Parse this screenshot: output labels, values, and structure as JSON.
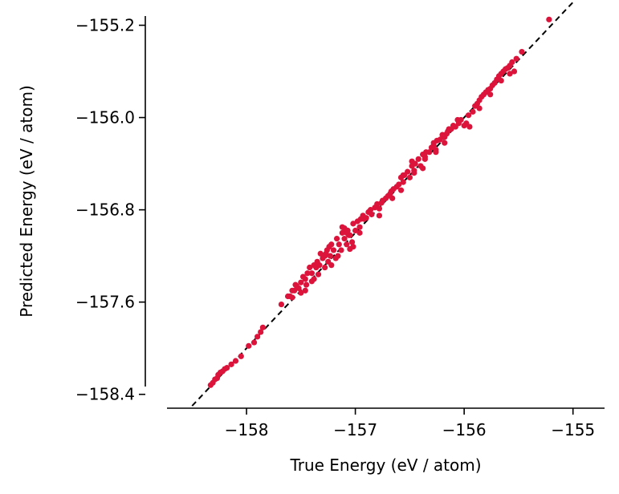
{
  "chart_data": {
    "type": "scatter",
    "title": "",
    "xlabel": "True Energy (eV / atom)",
    "ylabel": "Predicted Energy (eV / atom)",
    "xlim": [
      -158.93,
      -154.71
    ],
    "ylim": [
      -158.52,
      -155.12
    ],
    "xticks": [
      -158,
      -157,
      -156,
      -155
    ],
    "xtick_labels": [
      "−158",
      "−157",
      "−156",
      "−155"
    ],
    "yticks": [
      -158.4,
      -157.6,
      -156.8,
      -156.0,
      -155.2
    ],
    "ytick_labels": [
      "−158.4",
      "−157.6",
      "−156.8",
      "−156.0",
      "−155.2"
    ],
    "grid": false,
    "spines": [
      "left",
      "bottom"
    ],
    "colors": {
      "points": "#dc143c",
      "reference_line": "#000000"
    },
    "reference_line": {
      "style": "dashed",
      "x": [
        -158.5,
        -155.0
      ],
      "y": [
        -158.5,
        -155.0
      ]
    },
    "series": [
      {
        "points": [
          [
            -158.33,
            -158.32
          ],
          [
            -158.31,
            -158.3
          ],
          [
            -158.29,
            -158.27
          ],
          [
            -158.27,
            -158.26
          ],
          [
            -158.26,
            -158.23
          ],
          [
            -158.24,
            -158.21
          ],
          [
            -158.22,
            -158.2
          ],
          [
            -158.2,
            -158.18
          ],
          [
            -158.18,
            -158.17
          ],
          [
            -158.14,
            -158.14
          ],
          [
            -158.1,
            -158.11
          ],
          [
            -158.05,
            -158.07
          ],
          [
            -157.98,
            -157.98
          ],
          [
            -157.93,
            -157.95
          ],
          [
            -157.9,
            -157.9
          ],
          [
            -157.87,
            -157.86
          ],
          [
            -157.85,
            -157.82
          ],
          [
            -157.68,
            -157.62
          ],
          [
            -157.62,
            -157.55
          ],
          [
            -157.6,
            -157.55
          ],
          [
            -157.58,
            -157.5
          ],
          [
            -157.56,
            -157.5
          ],
          [
            -157.55,
            -157.45
          ],
          [
            -157.52,
            -157.48
          ],
          [
            -157.5,
            -157.43
          ],
          [
            -157.48,
            -157.38
          ],
          [
            -157.46,
            -157.4
          ],
          [
            -157.45,
            -157.45
          ],
          [
            -157.42,
            -157.3
          ],
          [
            -157.4,
            -157.35
          ],
          [
            -157.38,
            -157.4
          ],
          [
            -157.36,
            -157.3
          ],
          [
            -157.35,
            -157.25
          ],
          [
            -157.33,
            -157.28
          ],
          [
            -157.3,
            -157.22
          ],
          [
            -157.28,
            -157.3
          ],
          [
            -157.27,
            -157.18
          ],
          [
            -157.25,
            -157.25
          ],
          [
            -157.23,
            -157.2
          ],
          [
            -157.22,
            -157.1
          ],
          [
            -157.2,
            -157.15
          ],
          [
            -157.18,
            -157.22
          ],
          [
            -157.17,
            -157.05
          ],
          [
            -157.15,
            -157.1
          ],
          [
            -157.13,
            -157.15
          ],
          [
            -157.12,
            -157.0
          ],
          [
            -157.1,
            -157.05
          ],
          [
            -157.08,
            -157.1
          ],
          [
            -157.07,
            -156.98
          ],
          [
            -157.05,
            -157.02
          ],
          [
            -157.03,
            -157.08
          ],
          [
            -157.02,
            -156.92
          ],
          [
            -157.0,
            -156.98
          ],
          [
            -156.98,
            -156.9
          ],
          [
            -156.96,
            -156.95
          ],
          [
            -156.95,
            -156.88
          ],
          [
            -156.93,
            -156.85
          ],
          [
            -156.9,
            -156.87
          ],
          [
            -156.88,
            -156.82
          ],
          [
            -156.85,
            -156.84
          ],
          [
            -156.82,
            -156.78
          ],
          [
            -156.8,
            -156.75
          ],
          [
            -156.78,
            -156.79
          ],
          [
            -156.75,
            -156.72
          ],
          [
            -156.72,
            -156.7
          ],
          [
            -156.7,
            -156.68
          ],
          [
            -156.67,
            -156.64
          ],
          [
            -156.65,
            -156.62
          ],
          [
            -156.62,
            -156.6
          ],
          [
            -156.6,
            -156.58
          ],
          [
            -156.58,
            -156.52
          ],
          [
            -156.56,
            -156.56
          ],
          [
            -156.55,
            -156.5
          ],
          [
            -156.52,
            -156.47
          ],
          [
            -156.5,
            -156.52
          ],
          [
            -156.48,
            -156.42
          ],
          [
            -156.46,
            -156.46
          ],
          [
            -156.45,
            -156.4
          ],
          [
            -156.42,
            -156.36
          ],
          [
            -156.4,
            -156.42
          ],
          [
            -156.38,
            -156.32
          ],
          [
            -156.36,
            -156.36
          ],
          [
            -156.35,
            -156.3
          ],
          [
            -156.32,
            -156.3
          ],
          [
            -156.3,
            -156.26
          ],
          [
            -156.28,
            -156.24
          ],
          [
            -156.26,
            -156.28
          ],
          [
            -156.25,
            -156.2
          ],
          [
            -156.22,
            -156.19
          ],
          [
            -156.2,
            -156.15
          ],
          [
            -156.18,
            -156.17
          ],
          [
            -156.15,
            -156.12
          ],
          [
            -156.12,
            -156.1
          ],
          [
            -156.1,
            -156.07
          ],
          [
            -156.08,
            -156.08
          ],
          [
            -156.05,
            -156.05
          ],
          [
            -156.03,
            -156.02
          ],
          [
            -156.0,
            -156.07
          ],
          [
            -155.95,
            -156.08
          ],
          [
            -155.92,
            -155.95
          ],
          [
            -155.9,
            -155.9
          ],
          [
            -155.88,
            -155.88
          ],
          [
            -155.86,
            -155.85
          ],
          [
            -155.84,
            -155.82
          ],
          [
            -155.82,
            -155.8
          ],
          [
            -155.8,
            -155.78
          ],
          [
            -155.78,
            -155.76
          ],
          [
            -155.76,
            -155.75
          ],
          [
            -155.74,
            -155.72
          ],
          [
            -155.72,
            -155.7
          ],
          [
            -155.7,
            -155.67
          ],
          [
            -155.68,
            -155.64
          ],
          [
            -155.66,
            -155.62
          ],
          [
            -155.64,
            -155.6
          ],
          [
            -155.62,
            -155.58
          ],
          [
            -155.6,
            -155.57
          ],
          [
            -155.58,
            -155.55
          ],
          [
            -155.56,
            -155.52
          ],
          [
            -155.54,
            -155.6
          ],
          [
            -155.52,
            -155.49
          ],
          [
            -155.47,
            -155.43
          ],
          [
            -155.22,
            -155.15
          ],
          [
            -157.32,
            -157.18
          ],
          [
            -157.22,
            -157.28
          ],
          [
            -157.12,
            -156.95
          ],
          [
            -157.02,
            -157.12
          ],
          [
            -156.92,
            -156.88
          ],
          [
            -156.78,
            -156.85
          ],
          [
            -156.68,
            -156.66
          ],
          [
            -156.58,
            -156.63
          ],
          [
            -156.48,
            -156.38
          ],
          [
            -156.38,
            -156.44
          ],
          [
            -156.28,
            -156.22
          ],
          [
            -156.18,
            -156.22
          ],
          [
            -156.14,
            -156.1
          ],
          [
            -155.98,
            -156.05
          ],
          [
            -155.86,
            -155.92
          ],
          [
            -157.5,
            -157.52
          ],
          [
            -157.44,
            -157.35
          ],
          [
            -157.34,
            -157.36
          ],
          [
            -157.26,
            -157.15
          ],
          [
            -157.16,
            -157.2
          ],
          [
            -157.06,
            -157.02
          ],
          [
            -156.96,
            -157.0
          ],
          [
            -156.86,
            -156.8
          ],
          [
            -156.76,
            -156.74
          ],
          [
            -156.66,
            -156.7
          ],
          [
            -156.56,
            -156.5
          ],
          [
            -156.46,
            -156.48
          ],
          [
            -156.36,
            -156.34
          ],
          [
            -156.26,
            -156.3
          ],
          [
            -156.16,
            -156.14
          ],
          [
            -156.06,
            -156.02
          ],
          [
            -155.96,
            -155.98
          ],
          [
            -155.76,
            -155.8
          ],
          [
            -155.66,
            -155.68
          ],
          [
            -155.58,
            -155.62
          ],
          [
            -157.05,
            -157.14
          ],
          [
            -157.08,
            -157.0
          ],
          [
            -157.1,
            -156.96
          ],
          [
            -157.24,
            -157.12
          ],
          [
            -157.28,
            -157.2
          ],
          [
            -157.38,
            -157.28
          ],
          [
            -157.4,
            -157.42
          ],
          [
            -157.46,
            -157.5
          ],
          [
            -157.54,
            -157.46
          ],
          [
            -157.58,
            -157.56
          ]
        ]
      }
    ]
  }
}
